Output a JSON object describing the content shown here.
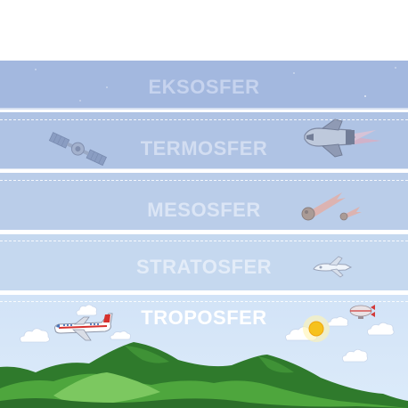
{
  "layers": [
    {
      "key": "eksosfer",
      "name": "EKSOSFER"
    },
    {
      "key": "termosfer",
      "name": "TERMOSFER"
    },
    {
      "key": "mesosfer",
      "name": "MESOSFER"
    },
    {
      "key": "stratosfer",
      "name": "STRATOSFER"
    },
    {
      "key": "troposfer",
      "name": "TROPOSFER"
    }
  ],
  "colors": {
    "eksosfer": "#a3b8df",
    "termosfer": "#afc3e4",
    "mesosfer": "#bacde9",
    "stratosfer": "#c5d8ef",
    "troposfer": "#d4e5f8",
    "label_faded": "#cfdaf0",
    "label_strong": "#ffffff",
    "mountain_dark": "#2f7a2c",
    "mountain_light": "#5cb347"
  },
  "icons": [
    "satellite-icon",
    "space-shuttle-icon",
    "meteor-icon",
    "jet-icon",
    "airplane-icon",
    "sun-icon",
    "blimp-icon",
    "cloud-icon",
    "mountains-icon"
  ]
}
